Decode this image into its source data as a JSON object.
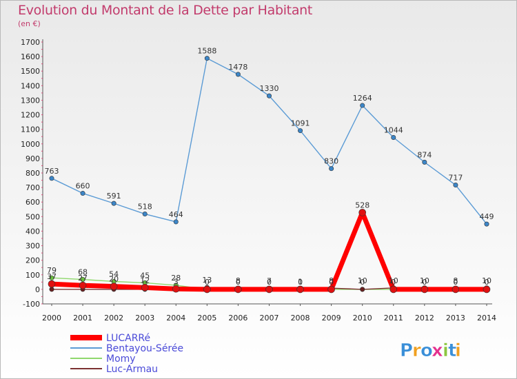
{
  "chart_data": {
    "type": "line",
    "title": "Evolution du Montant de la Dette par Habitant",
    "subtitle": "(en €)",
    "xlabel": "",
    "ylabel": "",
    "ylim": [
      -100,
      1700
    ],
    "yticks": [
      -100,
      0,
      100,
      200,
      300,
      400,
      500,
      600,
      700,
      800,
      900,
      1000,
      1100,
      1200,
      1300,
      1400,
      1500,
      1600,
      1700
    ],
    "categories": [
      "2000",
      "2001",
      "2002",
      "2003",
      "2004",
      "2005",
      "2006",
      "2007",
      "2008",
      "2009",
      "2010",
      "2011",
      "2012",
      "2013",
      "2014"
    ],
    "grid": false,
    "legend_position": "bottom-left",
    "series": [
      {
        "name": "LUCARRé",
        "color": "#ff0000",
        "width": 7,
        "values": [
          37,
          27,
          20,
          12,
          3,
          0,
          0,
          0,
          0,
          0,
          528,
          0,
          0,
          0,
          0
        ]
      },
      {
        "name": "Bentayou-Sérée",
        "color": "#5b9bd5",
        "width": 1.4,
        "values": [
          763,
          660,
          591,
          518,
          464,
          1588,
          1478,
          1330,
          1091,
          830,
          1264,
          1044,
          874,
          717,
          449
        ]
      },
      {
        "name": "Momy",
        "color": "#8fd86c",
        "width": 1.4,
        "values": [
          79,
          68,
          54,
          45,
          28,
          0,
          0,
          7,
          0,
          0,
          0,
          0,
          0,
          0,
          0
        ]
      },
      {
        "name": "Luc-Armau",
        "color": "#7b3030",
        "width": 1.4,
        "values": [
          0,
          0,
          0,
          0,
          0,
          13,
          8,
          0,
          1,
          8,
          0,
          10,
          10,
          8,
          10
        ]
      }
    ],
    "labels": [
      {
        "x": "2000",
        "y": 763,
        "text": "763"
      },
      {
        "x": "2001",
        "y": 660,
        "text": "660"
      },
      {
        "x": "2002",
        "y": 591,
        "text": "591"
      },
      {
        "x": "2003",
        "y": 518,
        "text": "518"
      },
      {
        "x": "2004",
        "y": 464,
        "text": "464"
      },
      {
        "x": "2005",
        "y": 1588,
        "text": "1588"
      },
      {
        "x": "2006",
        "y": 1478,
        "text": "1478"
      },
      {
        "x": "2007",
        "y": 1330,
        "text": "1330"
      },
      {
        "x": "2008",
        "y": 1091,
        "text": "1091"
      },
      {
        "x": "2009",
        "y": 830,
        "text": "830"
      },
      {
        "x": "2010",
        "y": 1264,
        "text": "1264"
      },
      {
        "x": "2011",
        "y": 1044,
        "text": "1044"
      },
      {
        "x": "2012",
        "y": 874,
        "text": "874"
      },
      {
        "x": "2013",
        "y": 717,
        "text": "717"
      },
      {
        "x": "2014",
        "y": 449,
        "text": "449"
      },
      {
        "x": "2010",
        "y": 528,
        "text": "528"
      },
      {
        "x": "2000",
        "y": 79,
        "text": "79"
      },
      {
        "x": "2000",
        "y": 37,
        "text": "37"
      },
      {
        "x": "2001",
        "y": 68,
        "text": "68"
      },
      {
        "x": "2001",
        "y": 27,
        "text": "27"
      },
      {
        "x": "2002",
        "y": 54,
        "text": "54"
      },
      {
        "x": "2002",
        "y": 20,
        "text": "20"
      },
      {
        "x": "2003",
        "y": 45,
        "text": "45"
      },
      {
        "x": "2003",
        "y": 12,
        "text": "12"
      },
      {
        "x": "2004",
        "y": 28,
        "text": "28"
      },
      {
        "x": "2004",
        "y": 3,
        "text": "3"
      },
      {
        "x": "2005",
        "y": 13,
        "text": "13"
      },
      {
        "x": "2005",
        "y": 0,
        "text": "0"
      },
      {
        "x": "2006",
        "y": 8,
        "text": "8"
      },
      {
        "x": "2006",
        "y": 0,
        "text": "0"
      },
      {
        "x": "2007",
        "y": 7,
        "text": "7"
      },
      {
        "x": "2007",
        "y": 0,
        "text": "0"
      },
      {
        "x": "2008",
        "y": 1,
        "text": "1"
      },
      {
        "x": "2008",
        "y": 0,
        "text": "0"
      },
      {
        "x": "2009",
        "y": 8,
        "text": "8"
      },
      {
        "x": "2009",
        "y": 0,
        "text": "0"
      },
      {
        "x": "2010",
        "y": 10,
        "text": "10"
      },
      {
        "x": "2010",
        "y": 0,
        "text": "0"
      },
      {
        "x": "2011",
        "y": 10,
        "text": "10"
      },
      {
        "x": "2011",
        "y": 0,
        "text": "0"
      },
      {
        "x": "2012",
        "y": 10,
        "text": "10"
      },
      {
        "x": "2012",
        "y": 0,
        "text": "0"
      },
      {
        "x": "2013",
        "y": 8,
        "text": "8"
      },
      {
        "x": "2013",
        "y": 0,
        "text": "0"
      },
      {
        "x": "2014",
        "y": 10,
        "text": "10"
      },
      {
        "x": "2014",
        "y": 0,
        "text": "0"
      }
    ]
  },
  "logo": {
    "text": "Proxiti",
    "letters": [
      "P",
      "r",
      "o",
      "x",
      "i",
      "t",
      "i"
    ],
    "letter_colors": [
      "#3a8fd8",
      "#f0a020",
      "#3a8fd8",
      "#e4318e",
      "#8cc63f",
      "#3a8fd8",
      "#f0a020"
    ]
  }
}
